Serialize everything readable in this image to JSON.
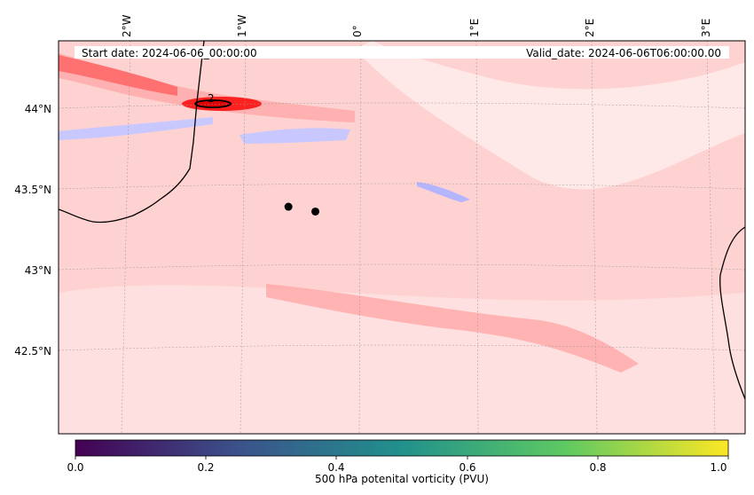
{
  "map": {
    "start_date_label": "Start date: 2024-06-06_00:00:00",
    "valid_date_label": "Valid_date: 2024-06-06T06:00:00.00",
    "contour_label": "2",
    "lon_ticks": [
      "2°W",
      "1°W",
      "0°",
      "1°E",
      "2°E",
      "3°E"
    ],
    "lat_ticks": [
      "44°N",
      "43.5°N",
      "43°N",
      "42.5°N"
    ],
    "markers": [
      {
        "lon": -0.62,
        "lat": 43.39
      },
      {
        "lon": -0.39,
        "lat": 43.36
      }
    ]
  },
  "colorbar": {
    "label": "500 hPa potenital vorticity (PVU)",
    "ticks": [
      "0.0",
      "0.2",
      "0.4",
      "0.6",
      "0.8",
      "1.0"
    ],
    "range": [
      0.0,
      1.0
    ],
    "colormap": "viridis",
    "colors": [
      "#440154",
      "#3b528b",
      "#21918c",
      "#5ec962",
      "#fde725"
    ]
  },
  "palette": {
    "field_red_strong": "#ff0000",
    "field_red_light": "#ffd0d0",
    "field_blue": "#c8c8ff",
    "coastline": "#000000"
  }
}
